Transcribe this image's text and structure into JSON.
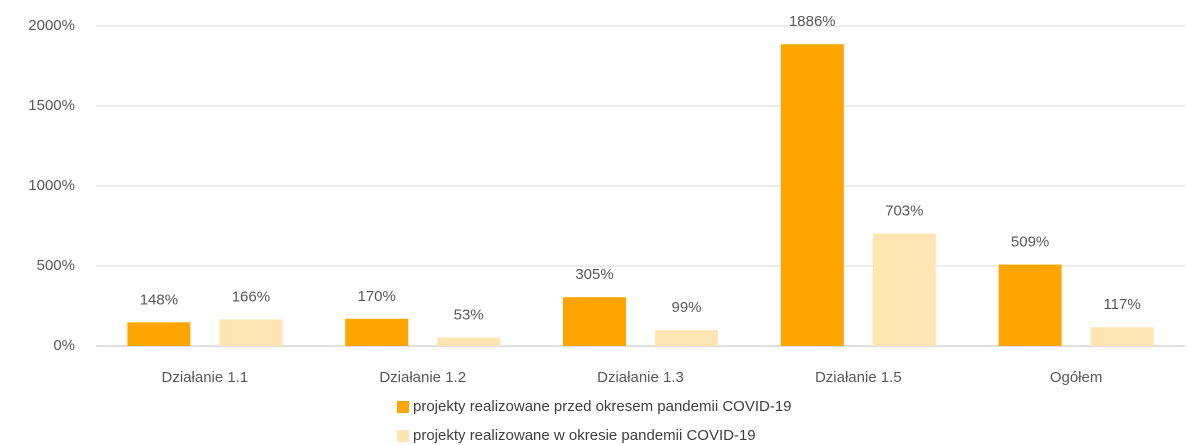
{
  "chart_data": {
    "type": "bar",
    "categories": [
      "Działanie 1.1",
      "Działanie 1.2",
      "Działanie 1.3",
      "Działanie 1.5",
      "Ogółem"
    ],
    "series": [
      {
        "name": "projekty realizowane przed okresem pandemii COVID-19",
        "color": "#FFA500",
        "values": [
          148,
          170,
          305,
          1886,
          509
        ],
        "value_labels": [
          "148%",
          "170%",
          "305%",
          "1886%",
          "509%"
        ]
      },
      {
        "name": "projekty realizowane w okresie pandemii COVID-19",
        "color": "#FFE5B4",
        "values": [
          166,
          53,
          99,
          703,
          117
        ],
        "value_labels": [
          "166%",
          "53%",
          "99%",
          "703%",
          "117%"
        ]
      }
    ],
    "ylim": [
      0,
      2000
    ],
    "yticks": [
      {
        "value": 0,
        "label": "0%"
      },
      {
        "value": 500,
        "label": "500%"
      },
      {
        "value": 1000,
        "label": "1000%"
      },
      {
        "value": 1500,
        "label": "1500%"
      },
      {
        "value": 2000,
        "label": "2000%"
      }
    ],
    "grid": true,
    "legend": "bottom"
  }
}
